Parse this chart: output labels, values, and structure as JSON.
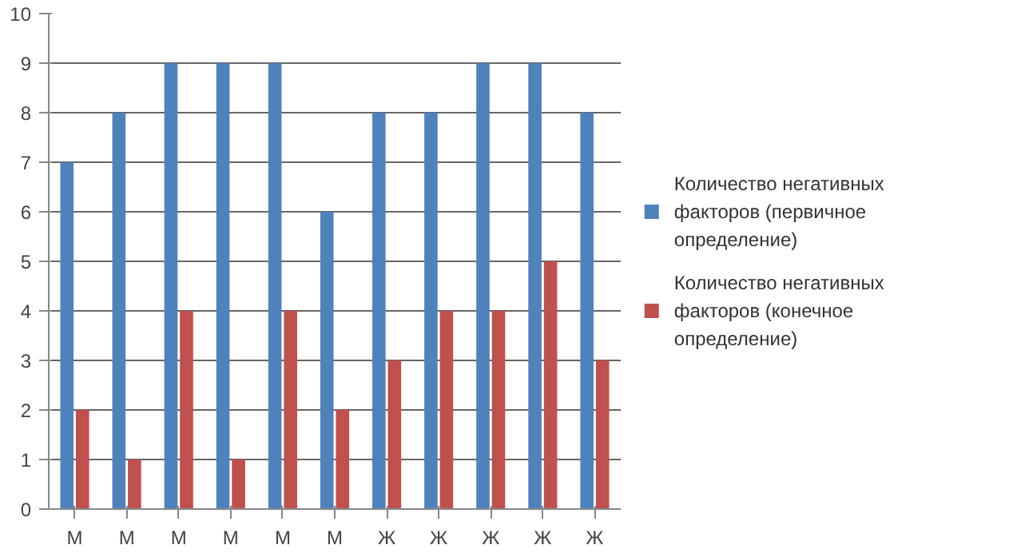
{
  "chart_data": {
    "type": "bar",
    "categories": [
      "М",
      "М",
      "М",
      "М",
      "М",
      "М",
      "Ж",
      "Ж",
      "Ж",
      "Ж",
      "Ж"
    ],
    "series": [
      {
        "name": "Количество негативных факторов (первичное определение)",
        "color": "#4f81bd",
        "values": [
          7,
          8,
          9,
          9,
          9,
          6,
          8,
          8,
          9,
          9,
          8
        ]
      },
      {
        "name": "Количество негативных факторов (конечное определение)",
        "color": "#c0504d",
        "values": [
          2,
          1,
          4,
          1,
          4,
          2,
          3,
          4,
          4,
          5,
          3
        ]
      }
    ],
    "ylim": [
      0,
      10
    ],
    "yticks": [
      0,
      1,
      2,
      3,
      4,
      5,
      6,
      7,
      8,
      9,
      10
    ],
    "grid": "y",
    "legend": "right"
  }
}
